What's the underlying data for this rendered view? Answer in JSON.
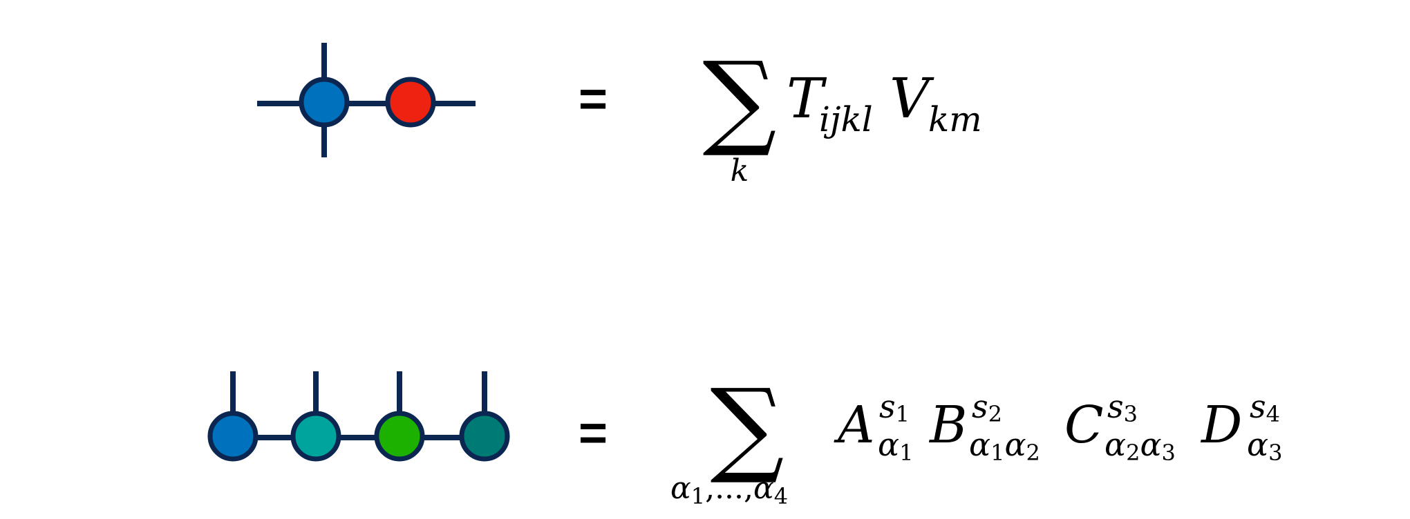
{
  "colors": {
    "line": "#0b2650",
    "node_blue": "#0072bd",
    "node_red": "#ee2211",
    "node_teal": "#00a49c",
    "node_green": "#1cb000",
    "node_dark_teal": "#007a74",
    "text": "#000000"
  },
  "equation1": {
    "equals": "=",
    "sum_symbol": "∑",
    "sum_index": "k",
    "term1_base": "T",
    "term1_sub": "ijkl",
    "term2_base": "V",
    "term2_sub": "km"
  },
  "equation2": {
    "equals": "=",
    "sum_symbol": "∑",
    "sum_index_a1": "α",
    "sum_index_1": "1",
    "sum_index_sep": ",...,",
    "sum_index_a4": "α",
    "sum_index_4": "4",
    "A": {
      "base": "A",
      "sup_s": "s",
      "sup_n": "1",
      "sub_a1": "α",
      "sub_n1": "1"
    },
    "B": {
      "base": "B",
      "sup_s": "s",
      "sup_n": "2",
      "sub_a1": "α",
      "sub_n1": "1",
      "sub_a2": "α",
      "sub_n2": "2"
    },
    "C": {
      "base": "C",
      "sup_s": "s",
      "sup_n": "3",
      "sub_a1": "α",
      "sub_n1": "2",
      "sub_a2": "α",
      "sub_n2": "3"
    },
    "D": {
      "base": "D",
      "sup_s": "s",
      "sup_n": "4",
      "sub_a1": "α",
      "sub_n1": "3"
    }
  }
}
